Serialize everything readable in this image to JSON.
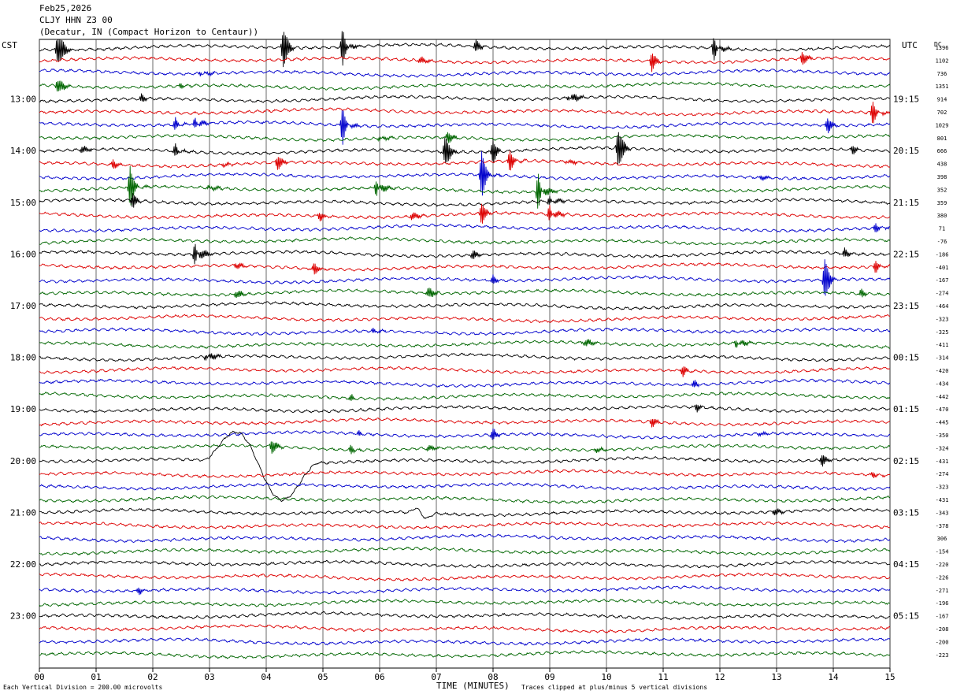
{
  "header": {
    "date": "Feb25,2026",
    "station": "CLJY HHN Z3 00",
    "location": "(Decatur, IN (Compact Horizon to Centaur))"
  },
  "footer": {
    "scale_note": "Each Vertical Division = 200.00 microvolts",
    "clip_note": "Traces clipped at plus/minus 5 vertical divisions"
  },
  "chart_data": {
    "type": "line",
    "title": "",
    "xlabel": "TIME (MINUTES)",
    "left_axis_label": "CST",
    "right_axis_label": "UTC",
    "dc_label": "DC",
    "xlim": [
      0,
      15
    ],
    "x_ticks": [
      "00",
      "01",
      "02",
      "03",
      "04",
      "05",
      "06",
      "07",
      "08",
      "09",
      "10",
      "11",
      "12",
      "13",
      "14",
      "15"
    ],
    "grid": true,
    "trace_colors": [
      "#000000",
      "#dd0000",
      "#0000cc",
      "#006600"
    ],
    "left_hour_labels": [
      "13:00",
      "14:00",
      "15:00",
      "16:00",
      "17:00",
      "18:00",
      "19:00",
      "20:00",
      "21:00",
      "22:00",
      "23:00"
    ],
    "right_hour_labels": [
      "19:15",
      "20:15",
      "21:15",
      "22:15",
      "23:15",
      "00:15",
      "01:15",
      "02:15",
      "03:15",
      "04:15",
      "05:15"
    ],
    "dc_offsets": [
      "1396",
      "1102",
      "736",
      "1351",
      "914",
      "702",
      "1029",
      "801",
      "666",
      "438",
      "398",
      "352",
      "359",
      "380",
      "71",
      "-76",
      "-186",
      "-401",
      "-167",
      "-274",
      "-464",
      "-323",
      "-325",
      "-411",
      "-314",
      "-420",
      "-434",
      "-442",
      "-470",
      "-445",
      "-350",
      "-324",
      "-431",
      "-274",
      "-323",
      "-431",
      "-343",
      "-378",
      "306",
      "-154",
      "-220",
      "-226",
      "-271",
      "-196",
      "-167",
      "-208",
      "-200",
      "-223"
    ],
    "events": [
      {
        "trace": 0,
        "minute": 0.3,
        "amp": 40
      },
      {
        "trace": 0,
        "minute": 4.3,
        "amp": 26
      },
      {
        "trace": 0,
        "minute": 5.35,
        "amp": 30
      },
      {
        "trace": 0,
        "minute": 7.7,
        "amp": 8
      },
      {
        "trace": 0,
        "minute": 11.9,
        "amp": 24
      },
      {
        "trace": 1,
        "minute": 6.7,
        "amp": 8
      },
      {
        "trace": 1,
        "minute": 10.8,
        "amp": 12
      },
      {
        "trace": 1,
        "minute": 13.45,
        "amp": 10
      },
      {
        "trace": 2,
        "minute": 2.85,
        "amp": 8
      },
      {
        "trace": 3,
        "minute": 0.3,
        "amp": 18
      },
      {
        "trace": 3,
        "minute": 2.5,
        "amp": 6
      },
      {
        "trace": 4,
        "minute": 1.8,
        "amp": 6
      },
      {
        "trace": 4,
        "minute": 9.35,
        "amp": 18
      },
      {
        "trace": 5,
        "minute": 14.7,
        "amp": 18
      },
      {
        "trace": 6,
        "minute": 2.4,
        "amp": 12
      },
      {
        "trace": 6,
        "minute": 2.75,
        "amp": 18
      },
      {
        "trace": 6,
        "minute": 5.35,
        "amp": 30
      },
      {
        "trace": 6,
        "minute": 13.9,
        "amp": 10
      },
      {
        "trace": 7,
        "minute": 6.0,
        "amp": 8
      },
      {
        "trace": 7,
        "minute": 7.2,
        "amp": 8
      },
      {
        "trace": 8,
        "minute": 0.75,
        "amp": 6
      },
      {
        "trace": 8,
        "minute": 2.4,
        "amp": 12
      },
      {
        "trace": 8,
        "minute": 7.15,
        "amp": 22
      },
      {
        "trace": 8,
        "minute": 8.0,
        "amp": 16
      },
      {
        "trace": 8,
        "minute": 10.2,
        "amp": 30
      },
      {
        "trace": 8,
        "minute": 14.35,
        "amp": 6
      },
      {
        "trace": 9,
        "minute": 1.3,
        "amp": 6
      },
      {
        "trace": 9,
        "minute": 3.2,
        "amp": 6
      },
      {
        "trace": 9,
        "minute": 4.2,
        "amp": 10
      },
      {
        "trace": 9,
        "minute": 8.3,
        "amp": 16
      },
      {
        "trace": 9,
        "minute": 9.3,
        "amp": 10
      },
      {
        "trace": 10,
        "minute": 7.8,
        "amp": 30
      },
      {
        "trace": 10,
        "minute": 12.7,
        "amp": 8
      },
      {
        "trace": 11,
        "minute": 1.6,
        "amp": 26
      },
      {
        "trace": 11,
        "minute": 3.0,
        "amp": 10
      },
      {
        "trace": 11,
        "minute": 5.95,
        "amp": 28
      },
      {
        "trace": 11,
        "minute": 8.8,
        "amp": 40
      },
      {
        "trace": 12,
        "minute": 1.65,
        "amp": 10
      },
      {
        "trace": 12,
        "minute": 9.0,
        "amp": 12
      },
      {
        "trace": 13,
        "minute": 4.95,
        "amp": 6
      },
      {
        "trace": 13,
        "minute": 6.55,
        "amp": 10
      },
      {
        "trace": 13,
        "minute": 7.8,
        "amp": 14
      },
      {
        "trace": 13,
        "minute": 9.0,
        "amp": 24
      },
      {
        "trace": 14,
        "minute": 14.75,
        "amp": 8
      },
      {
        "trace": 16,
        "minute": 2.75,
        "amp": 34
      },
      {
        "trace": 16,
        "minute": 7.65,
        "amp": 6
      },
      {
        "trace": 16,
        "minute": 14.2,
        "amp": 6
      },
      {
        "trace": 17,
        "minute": 3.45,
        "amp": 8
      },
      {
        "trace": 17,
        "minute": 4.85,
        "amp": 8
      },
      {
        "trace": 17,
        "minute": 14.75,
        "amp": 10
      },
      {
        "trace": 18,
        "minute": 8.0,
        "amp": 6
      },
      {
        "trace": 18,
        "minute": 13.85,
        "amp": 26
      },
      {
        "trace": 19,
        "minute": 3.45,
        "amp": 10
      },
      {
        "trace": 19,
        "minute": 6.85,
        "amp": 10
      },
      {
        "trace": 19,
        "minute": 14.5,
        "amp": 6
      },
      {
        "trace": 22,
        "minute": 5.9,
        "amp": 8
      },
      {
        "trace": 23,
        "minute": 9.6,
        "amp": 12
      },
      {
        "trace": 23,
        "minute": 12.3,
        "amp": 16
      },
      {
        "trace": 24,
        "minute": 2.95,
        "amp": 16
      },
      {
        "trace": 25,
        "minute": 11.35,
        "amp": 8
      },
      {
        "trace": 26,
        "minute": 11.55,
        "amp": 6
      },
      {
        "trace": 27,
        "minute": 5.5,
        "amp": 6
      },
      {
        "trace": 28,
        "minute": 11.6,
        "amp": 6
      },
      {
        "trace": 29,
        "minute": 10.8,
        "amp": 6
      },
      {
        "trace": 30,
        "minute": 5.65,
        "amp": 6
      },
      {
        "trace": 30,
        "minute": 8.0,
        "amp": 8
      },
      {
        "trace": 30,
        "minute": 12.65,
        "amp": 6
      },
      {
        "trace": 31,
        "minute": 4.1,
        "amp": 10
      },
      {
        "trace": 31,
        "minute": 5.5,
        "amp": 8
      },
      {
        "trace": 31,
        "minute": 6.85,
        "amp": 6
      },
      {
        "trace": 31,
        "minute": 9.8,
        "amp": 6
      },
      {
        "trace": 32,
        "minute": 13.8,
        "amp": 8
      },
      {
        "trace": 33,
        "minute": 14.7,
        "amp": 5
      },
      {
        "trace": 36,
        "minute": 12.95,
        "amp": 8
      },
      {
        "trace": 42,
        "minute": 1.75,
        "amp": 5
      }
    ],
    "long_period_waves": [
      {
        "trace": 32,
        "from_minute": 2.9,
        "to_minute": 5.0
      },
      {
        "trace": 36,
        "from_minute": 6.5,
        "to_minute": 7.0
      }
    ]
  }
}
